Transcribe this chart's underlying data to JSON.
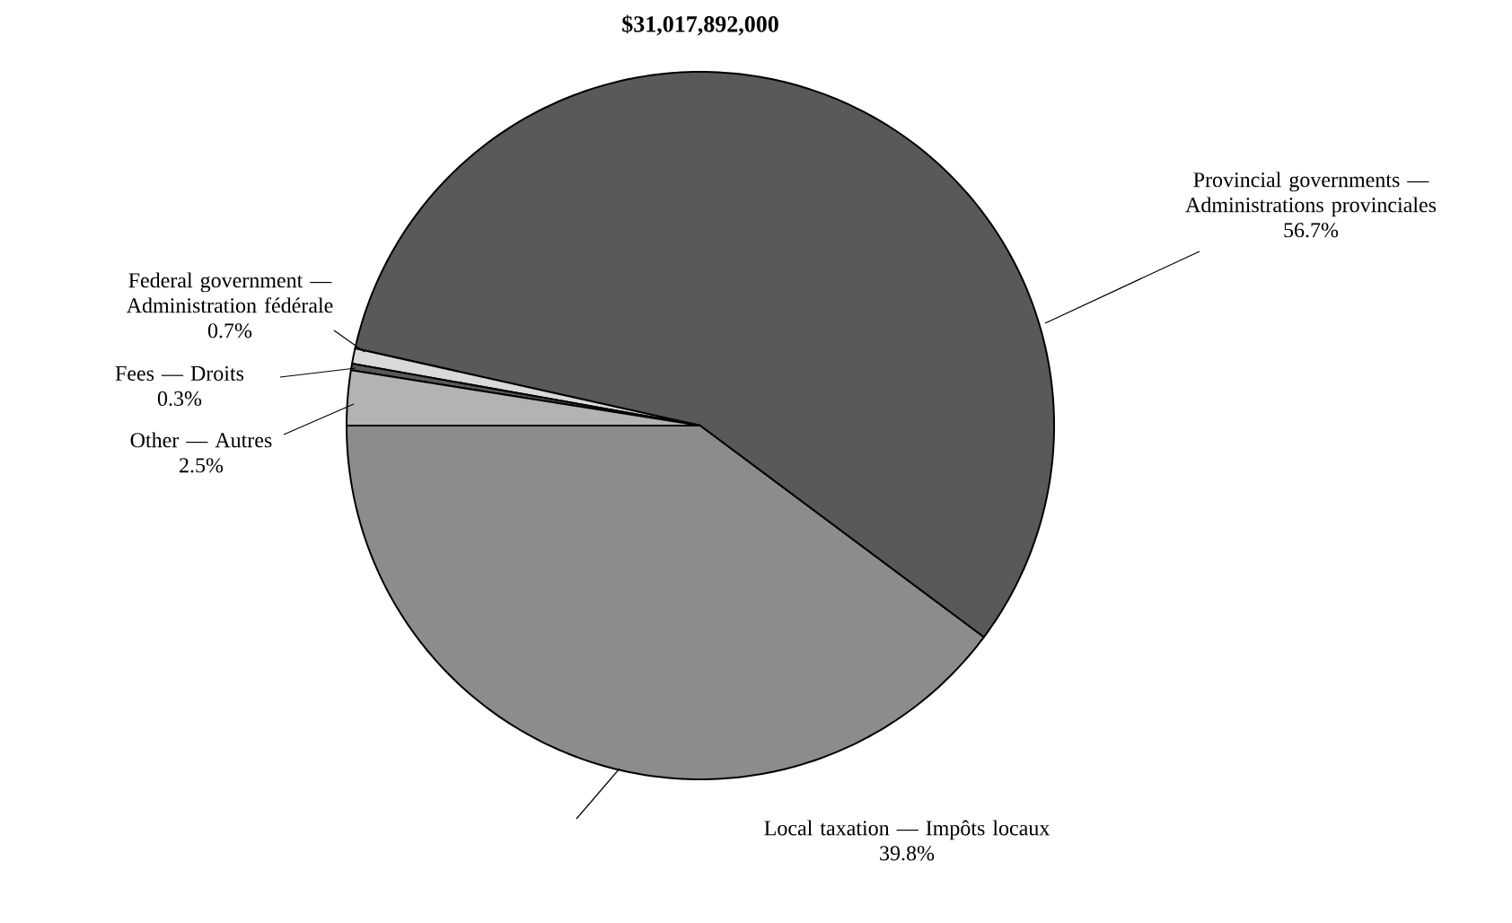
{
  "chart_data": {
    "type": "pie",
    "title": "$31,017,892,000",
    "categories": [
      "Local taxation — Impôts locaux",
      "Provincial governments — Administrations provinciales",
      "Federal government — Administration fédérale",
      "Fees — Droits",
      "Other — Autres"
    ],
    "values": [
      39.8,
      56.7,
      0.7,
      0.3,
      2.5
    ],
    "colors": [
      "#8c8c8c",
      "#595959",
      "#d9d9d9",
      "#595959",
      "#b3b3b3"
    ],
    "value_labels": [
      "39.8%",
      "56.7%",
      "0.7%",
      "0.3%",
      "2.5%"
    ]
  }
}
